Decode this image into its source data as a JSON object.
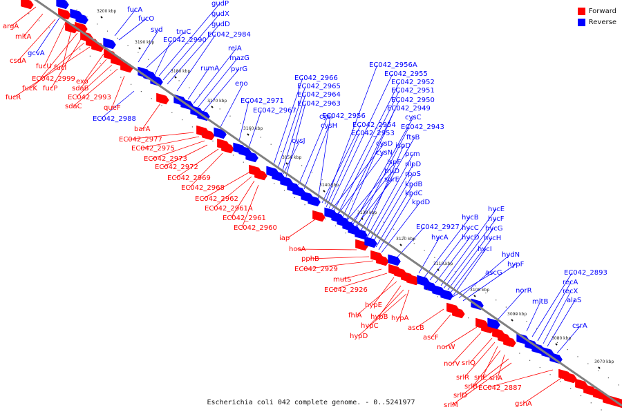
{
  "legend": [
    {
      "label": "Forward",
      "color": "#ff0000"
    },
    {
      "label": "Reverse",
      "color": "#0000ff"
    }
  ],
  "caption": "Escherichia coli 042 complete genome. - 0..5241977",
  "colors": {
    "backbone": "#808080",
    "forward": "#ff0000",
    "reverse": "#0000ff"
  },
  "ticks": [
    "3200 kbp",
    "3190 kbp",
    "3180 kbp",
    "3170 kbp",
    "3160 kbp",
    "3150 kbp",
    "3140 kbp",
    "3130 kbp",
    "3120 kbp",
    "3110 kbp",
    "3100 kbp",
    "3090 kbp",
    "3080 kbp",
    "3070 kbp"
  ],
  "forward_genes": [
    "argA",
    "mltA",
    "csdA",
    "fucU",
    "fucI",
    "EC042_2999",
    "fucP",
    "fucK",
    "fucR",
    "exo",
    "sdaB",
    "EC042_2993",
    "sdaC",
    "queF",
    "barA",
    "EC042_2977",
    "EC042_2975",
    "EC042_2973",
    "EC042_2972",
    "EC042_2969",
    "EC042_2968",
    "EC042_2962",
    "EC042_2961A",
    "EC042_2961",
    "EC042_2960",
    "iap",
    "hosA",
    "pphB",
    "EC042_2929",
    "mutS",
    "EC042_2926",
    "hypE",
    "fhlA",
    "hypB",
    "hypA",
    "hypC",
    "hypD",
    "ascB",
    "ascF",
    "norW",
    "norV",
    "srlQ",
    "srlR",
    "srlE",
    "srlB",
    "srlA",
    "srlD",
    "srlM",
    "EC042_2887",
    "gshA"
  ],
  "reverse_genes": [
    "fucA",
    "fucO",
    "syd",
    "truC",
    "EC042_2990",
    "gudP",
    "gudX",
    "gudD",
    "EC042_2984",
    "gcvA",
    "relA",
    "mazG",
    "rumA",
    "pyrG",
    "eno",
    "EC042_2988",
    "EC042_2971",
    "EC042_2967",
    "EC042_2966",
    "EC042_2965",
    "EC042_2964",
    "EC042_2963",
    "EC042_2956A",
    "EC042_2955",
    "EC042_2952",
    "EC042_2951",
    "EC042_2950",
    "EC042_2949",
    "cysI",
    "cysH",
    "cysJ",
    "EC042_2956",
    "EC042_2954",
    "EC042_2953",
    "cysC",
    "EC042_2943",
    "ftsB",
    "cysD",
    "ispD",
    "cysN",
    "ispF",
    "pcm",
    "nlpD",
    "truD",
    "rpoS",
    "surE",
    "kpdB",
    "kpdC",
    "kpdD",
    "EC042_2927",
    "hycE",
    "hycB",
    "hycF",
    "hycA",
    "hycC",
    "hycG",
    "hycD",
    "hycH",
    "hycI",
    "hydN",
    "hypF",
    "ascG",
    "norR",
    "mltB",
    "EC042_2893",
    "recA",
    "recX",
    "alaS",
    "csrA"
  ]
}
